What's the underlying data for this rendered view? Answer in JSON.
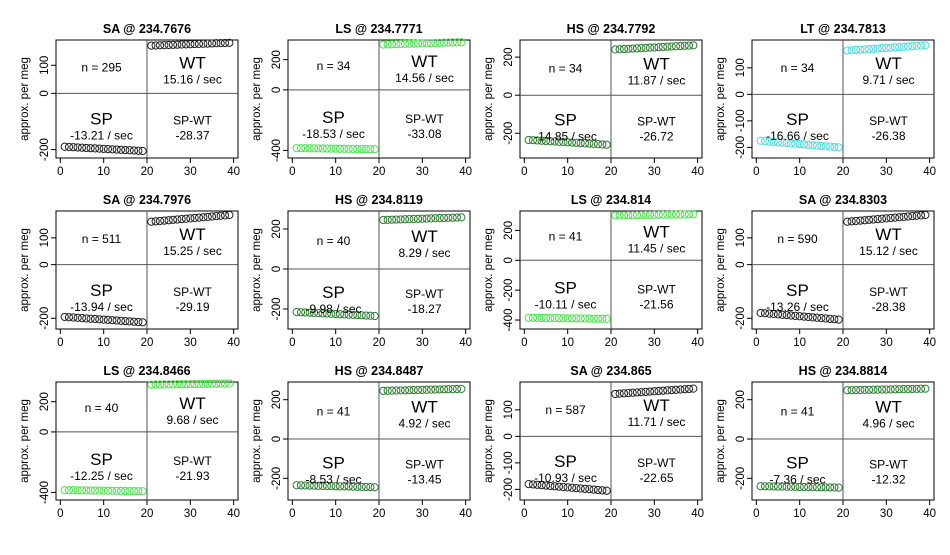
{
  "chart_data": {
    "type": "scatter",
    "ylabel": "approx. per meg",
    "xticks": [
      0,
      10,
      20,
      30,
      40
    ],
    "xlim": [
      -1,
      41
    ],
    "panels": [
      {
        "title": "SA @ 234.7676",
        "n": "n = 295",
        "wt": "WT",
        "wt_rate": "15.16 / sec",
        "sp": "SP",
        "sp_rate": "-13.21 / sec",
        "diff_label": "SP-WT",
        "diff": "-28.37",
        "color": "#222222",
        "yticks": [
          100,
          0,
          -200
        ],
        "ylim": [
          -230,
          190
        ],
        "sp_start": -190,
        "sp_end": -205,
        "wt_start": 170,
        "wt_end": 180
      },
      {
        "title": "LS @ 234.7771",
        "n": "n = 34",
        "wt": "WT",
        "wt_rate": "14.56 / sec",
        "sp": "SP",
        "sp_rate": "-18.53 / sec",
        "diff_label": "SP-WT",
        "diff": "-33.08",
        "color": "#4ee04e",
        "yticks": [
          200,
          0,
          -400
        ],
        "ylim": [
          -450,
          330
        ],
        "sp_start": -385,
        "sp_end": -392,
        "wt_start": 300,
        "wt_end": 315
      },
      {
        "title": "HS @ 234.7792",
        "n": "n = 34",
        "wt": "WT",
        "wt_rate": "11.87 / sec",
        "sp": "SP",
        "sp_rate": "-14.85 / sec",
        "diff_label": "SP-WT",
        "diff": "-26.72",
        "color": "#2e7d32",
        "yticks": [
          200,
          0,
          -200
        ],
        "ylim": [
          -330,
          290
        ],
        "sp_start": -235,
        "sp_end": -260,
        "wt_start": 240,
        "wt_end": 262
      },
      {
        "title": "LT @ 234.7813",
        "n": "n = 34",
        "wt": "WT",
        "wt_rate": "9.71 / sec",
        "sp": "SP",
        "sp_rate": "-16.66 / sec",
        "diff_label": "SP-WT",
        "diff": "-26.38",
        "color": "#4fd8e0",
        "yticks": [
          100,
          0,
          -100,
          -200
        ],
        "ylim": [
          -240,
          205
        ],
        "sp_start": -175,
        "sp_end": -200,
        "wt_start": 165,
        "wt_end": 185
      },
      {
        "title": "SA @ 234.7976",
        "n": "n = 511",
        "wt": "WT",
        "wt_rate": "15.25 / sec",
        "sp": "SP",
        "sp_rate": "-13.94 / sec",
        "diff_label": "SP-WT",
        "diff": "-29.19",
        "color": "#222222",
        "yticks": [
          100,
          0,
          -200
        ],
        "ylim": [
          -240,
          200
        ],
        "sp_start": -195,
        "sp_end": -215,
        "wt_start": 160,
        "wt_end": 185
      },
      {
        "title": "HS @ 234.8119",
        "n": "n = 40",
        "wt": "WT",
        "wt_rate": "8.29 / sec",
        "sp": "SP",
        "sp_rate": "-9.98 / sec",
        "diff_label": "SP-WT",
        "diff": "-18.27",
        "color": "#2e7d32",
        "yticks": [
          200,
          0,
          -200
        ],
        "ylim": [
          -300,
          290
        ],
        "sp_start": -215,
        "sp_end": -235,
        "wt_start": 245,
        "wt_end": 258
      },
      {
        "title": "LS @ 234.814",
        "n": "n = 41",
        "wt": "WT",
        "wt_rate": "11.45 / sec",
        "sp": "SP",
        "sp_rate": "-10.11 / sec",
        "diff_label": "SP-WT",
        "diff": "-21.56",
        "color": "#4ee04e",
        "yticks": [
          200,
          0,
          -200,
          -400
        ],
        "ylim": [
          -460,
          330
        ],
        "sp_start": -385,
        "sp_end": -392,
        "wt_start": 300,
        "wt_end": 308
      },
      {
        "title": "SA @ 234.8303",
        "n": "n = 590",
        "wt": "WT",
        "wt_rate": "15.12 / sec",
        "sp": "SP",
        "sp_rate": "-13.26 / sec",
        "diff_label": "SP-WT",
        "diff": "-28.38",
        "color": "#222222",
        "yticks": [
          100,
          0,
          -200
        ],
        "ylim": [
          -240,
          200
        ],
        "sp_start": -180,
        "sp_end": -205,
        "wt_start": 160,
        "wt_end": 185
      },
      {
        "title": "LS @ 234.8466",
        "n": "n = 40",
        "wt": "WT",
        "wt_rate": "9.68 / sec",
        "sp": "SP",
        "sp_rate": "-12.25 / sec",
        "diff_label": "SP-WT",
        "diff": "-21.93",
        "color": "#4ee04e",
        "yticks": [
          200,
          0,
          -400
        ],
        "ylim": [
          -450,
          330
        ],
        "sp_start": -385,
        "sp_end": -392,
        "wt_start": 312,
        "wt_end": 320
      },
      {
        "title": "HS @ 234.8487",
        "n": "n = 41",
        "wt": "WT",
        "wt_rate": "4.92 / sec",
        "sp": "SP",
        "sp_rate": "-8.53 / sec",
        "diff_label": "SP-WT",
        "diff": "-13.45",
        "color": "#2e7d32",
        "yticks": [
          200,
          0,
          -200
        ],
        "ylim": [
          -310,
          290
        ],
        "sp_start": -235,
        "sp_end": -245,
        "wt_start": 245,
        "wt_end": 255
      },
      {
        "title": "SA @ 234.865",
        "n": "n = 587",
        "wt": "WT",
        "wt_rate": "11.71 / sec",
        "sp": "SP",
        "sp_rate": "-10.93 / sec",
        "diff_label": "SP-WT",
        "diff": "-22.65",
        "color": "#222222",
        "yticks": [
          100,
          0,
          -100,
          -200
        ],
        "ylim": [
          -240,
          205
        ],
        "sp_start": -180,
        "sp_end": -205,
        "wt_start": 160,
        "wt_end": 180
      },
      {
        "title": "HS @ 234.8814",
        "n": "n = 41",
        "wt": "WT",
        "wt_rate": "4.96 / sec",
        "sp": "SP",
        "sp_rate": "-7.36 / sec",
        "diff_label": "SP-WT",
        "diff": "-12.32",
        "color": "#2e7d32",
        "yticks": [
          200,
          0,
          -200
        ],
        "ylim": [
          -310,
          290
        ],
        "sp_start": -240,
        "sp_end": -247,
        "wt_start": 248,
        "wt_end": 256
      }
    ]
  }
}
